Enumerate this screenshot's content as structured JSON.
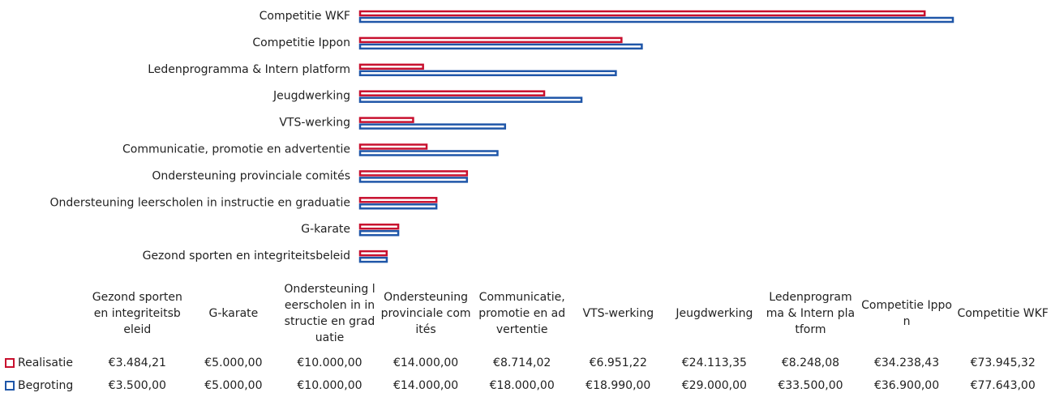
{
  "chart_data": {
    "type": "bar",
    "orientation": "horizontal",
    "categories": [
      "Gezond sporten en integriteitsbeleid",
      "G-karate",
      "Ondersteuning leerscholen in instructie en graduatie",
      "Ondersteuning provinciale comités",
      "Communicatie, promotie en advertentie",
      "VTS-werking",
      "Jeugdwerking",
      "Ledenprogramma & Intern platform",
      "Competitie Ippon",
      "Competitie WKF"
    ],
    "series": [
      {
        "name": "Realisatie",
        "color": "#c8102e",
        "values": [
          3484.21,
          5000,
          10000,
          14000,
          8714.02,
          6951.22,
          24113.35,
          8248.08,
          34238.43,
          73945.32
        ],
        "value_labels": [
          "€3.484,21",
          "€5.000,00",
          "€10.000,00",
          "€14.000,00",
          "€8.714,02",
          "€6.951,22",
          "€24.113,35",
          "€8.248,08",
          "€34.238,43",
          "€73.945,32"
        ]
      },
      {
        "name": "Begroting",
        "color": "#1f56a8",
        "values": [
          3500,
          5000,
          10000,
          14000,
          18000,
          18990,
          29000,
          33500,
          36900,
          77643
        ],
        "value_labels": [
          "€3.500,00",
          "€5.000,00",
          "€10.000,00",
          "€14.000,00",
          "€18.000,00",
          "€18.990,00",
          "€29.000,00",
          "€33.500,00",
          "€36.900,00",
          "€77.643,00"
        ]
      }
    ]
  }
}
